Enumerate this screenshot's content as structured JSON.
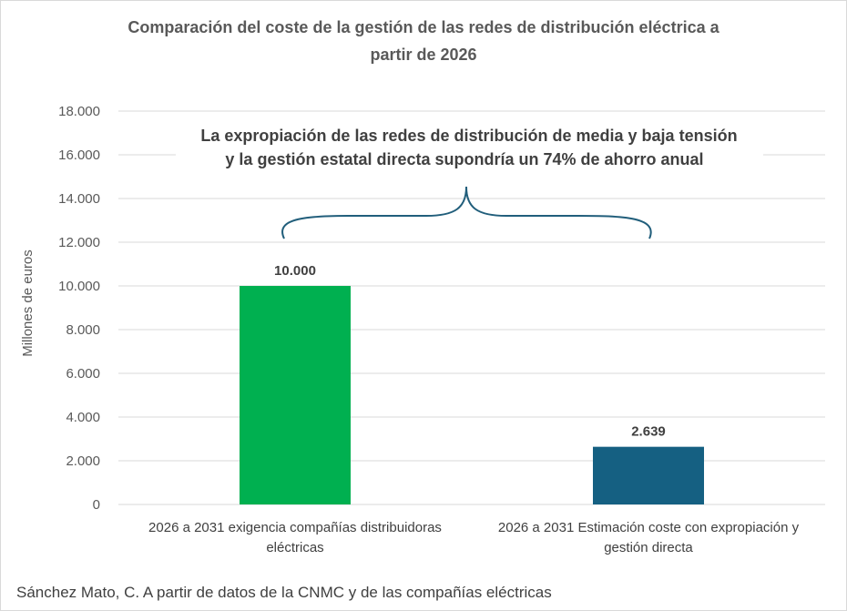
{
  "chart_data": {
    "type": "bar",
    "title": [
      "Comparación del coste de la gestión de las redes de distribución eléctrica a",
      "partir de 2026"
    ],
    "ylabel": "Millones de euros",
    "ylim": [
      0,
      18000
    ],
    "yticks": [
      "0",
      "2.000",
      "4.000",
      "6.000",
      "8.000",
      "10.000",
      "12.000",
      "14.000",
      "16.000",
      "18.000"
    ],
    "grid": true,
    "categories": [
      [
        "2026 a 2031 exigencia compañías distribuidoras",
        "eléctricas"
      ],
      [
        "2026 a 2031 Estimación coste con expropiación y",
        "gestión directa"
      ]
    ],
    "values": [
      10000,
      2639
    ],
    "data_labels": [
      "10.000",
      "2.639"
    ],
    "colors": [
      "#00b050",
      "#156082"
    ],
    "annotation": [
      "La expropiación de las redes de distribución de media y baja tensión",
      "y la gestión estatal directa supondría un 74% de ahorro anual"
    ],
    "brace_color": "#215e7b"
  },
  "source": "Sánchez Mato, C.  A partir de datos de la CNMC y de las compañías eléctricas"
}
